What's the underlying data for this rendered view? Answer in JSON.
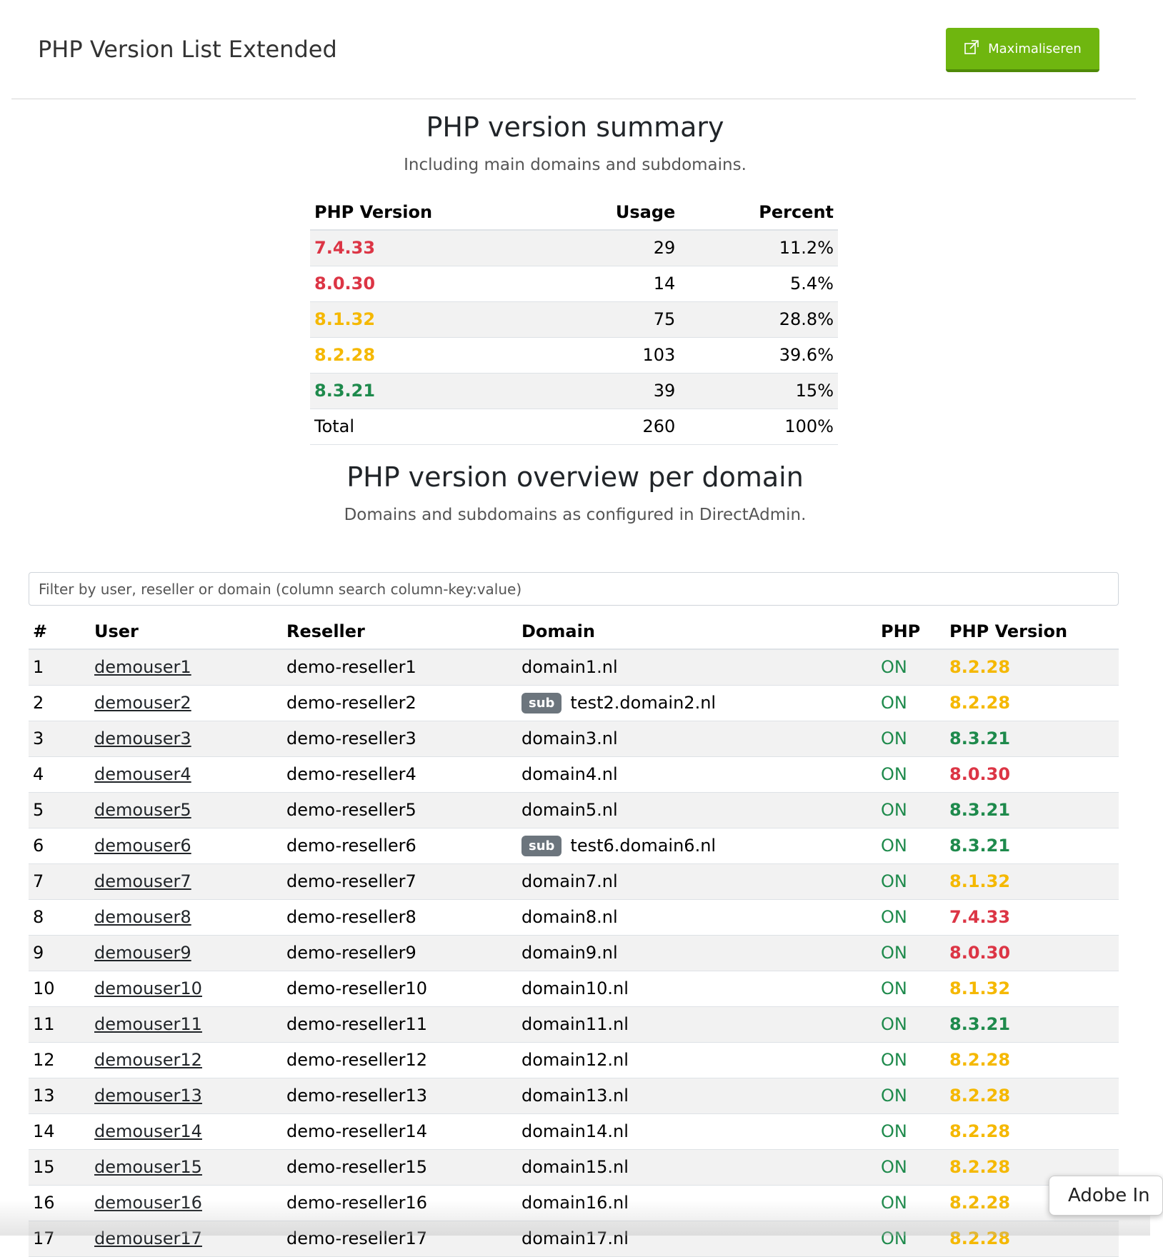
{
  "header": {
    "title": "PHP Version List Extended",
    "maximize_label": "Maximaliseren",
    "maximize_icon": "expand-icon"
  },
  "summary": {
    "title": "PHP version summary",
    "subtitle": "Including main domains and subdomains.",
    "columns": [
      "PHP Version",
      "Usage",
      "Percent"
    ],
    "rows": [
      {
        "version": "7.4.33",
        "usage": "29",
        "percent": "11.2%",
        "status": "red"
      },
      {
        "version": "8.0.30",
        "usage": "14",
        "percent": "5.4%",
        "status": "red"
      },
      {
        "version": "8.1.32",
        "usage": "75",
        "percent": "28.8%",
        "status": "yellow"
      },
      {
        "version": "8.2.28",
        "usage": "103",
        "percent": "39.6%",
        "status": "yellow"
      },
      {
        "version": "8.3.21",
        "usage": "39",
        "percent": "15%",
        "status": "green"
      }
    ],
    "total": {
      "label": "Total",
      "usage": "260",
      "percent": "100%"
    }
  },
  "overview": {
    "title": "PHP version overview per domain",
    "subtitle": "Domains and subdomains as configured in DirectAdmin.",
    "filter_placeholder": "Filter by user, reseller or domain (column search column-key:value)",
    "columns": [
      "#",
      "User",
      "Reseller",
      "Domain",
      "PHP",
      "PHP Version"
    ],
    "sub_badge_label": "sub",
    "rows": [
      {
        "num": "1",
        "user": "demouser1",
        "reseller": "demo-reseller1",
        "domain": "domain1.nl",
        "sub": false,
        "php": "ON",
        "version": "8.2.28",
        "status": "yellow"
      },
      {
        "num": "2",
        "user": "demouser2",
        "reseller": "demo-reseller2",
        "domain": "test2.domain2.nl",
        "sub": true,
        "php": "ON",
        "version": "8.2.28",
        "status": "yellow"
      },
      {
        "num": "3",
        "user": "demouser3",
        "reseller": "demo-reseller3",
        "domain": "domain3.nl",
        "sub": false,
        "php": "ON",
        "version": "8.3.21",
        "status": "green"
      },
      {
        "num": "4",
        "user": "demouser4",
        "reseller": "demo-reseller4",
        "domain": "domain4.nl",
        "sub": false,
        "php": "ON",
        "version": "8.0.30",
        "status": "red"
      },
      {
        "num": "5",
        "user": "demouser5",
        "reseller": "demo-reseller5",
        "domain": "domain5.nl",
        "sub": false,
        "php": "ON",
        "version": "8.3.21",
        "status": "green"
      },
      {
        "num": "6",
        "user": "demouser6",
        "reseller": "demo-reseller6",
        "domain": "test6.domain6.nl",
        "sub": true,
        "php": "ON",
        "version": "8.3.21",
        "status": "green"
      },
      {
        "num": "7",
        "user": "demouser7",
        "reseller": "demo-reseller7",
        "domain": "domain7.nl",
        "sub": false,
        "php": "ON",
        "version": "8.1.32",
        "status": "yellow"
      },
      {
        "num": "8",
        "user": "demouser8",
        "reseller": "demo-reseller8",
        "domain": "domain8.nl",
        "sub": false,
        "php": "ON",
        "version": "7.4.33",
        "status": "red"
      },
      {
        "num": "9",
        "user": "demouser9",
        "reseller": "demo-reseller9",
        "domain": "domain9.nl",
        "sub": false,
        "php": "ON",
        "version": "8.0.30",
        "status": "red"
      },
      {
        "num": "10",
        "user": "demouser10",
        "reseller": "demo-reseller10",
        "domain": "domain10.nl",
        "sub": false,
        "php": "ON",
        "version": "8.1.32",
        "status": "yellow"
      },
      {
        "num": "11",
        "user": "demouser11",
        "reseller": "demo-reseller11",
        "domain": "domain11.nl",
        "sub": false,
        "php": "ON",
        "version": "8.3.21",
        "status": "green"
      },
      {
        "num": "12",
        "user": "demouser12",
        "reseller": "demo-reseller12",
        "domain": "domain12.nl",
        "sub": false,
        "php": "ON",
        "version": "8.2.28",
        "status": "yellow"
      },
      {
        "num": "13",
        "user": "demouser13",
        "reseller": "demo-reseller13",
        "domain": "domain13.nl",
        "sub": false,
        "php": "ON",
        "version": "8.2.28",
        "status": "yellow"
      },
      {
        "num": "14",
        "user": "demouser14",
        "reseller": "demo-reseller14",
        "domain": "domain14.nl",
        "sub": false,
        "php": "ON",
        "version": "8.2.28",
        "status": "yellow"
      },
      {
        "num": "15",
        "user": "demouser15",
        "reseller": "demo-reseller15",
        "domain": "domain15.nl",
        "sub": false,
        "php": "ON",
        "version": "8.2.28",
        "status": "yellow"
      },
      {
        "num": "16",
        "user": "demouser16",
        "reseller": "demo-reseller16",
        "domain": "domain16.nl",
        "sub": false,
        "php": "ON",
        "version": "8.2.28",
        "status": "yellow"
      },
      {
        "num": "17",
        "user": "demouser17",
        "reseller": "demo-reseller17",
        "domain": "domain17.nl",
        "sub": false,
        "php": "ON",
        "version": "8.2.28",
        "status": "yellow"
      }
    ]
  },
  "popup": {
    "label": "Adobe In"
  },
  "colors": {
    "accent_green_button": "#6fb60f",
    "version_red": "#dc3545",
    "version_yellow": "#f5b800",
    "version_green": "#1e8a4c"
  }
}
